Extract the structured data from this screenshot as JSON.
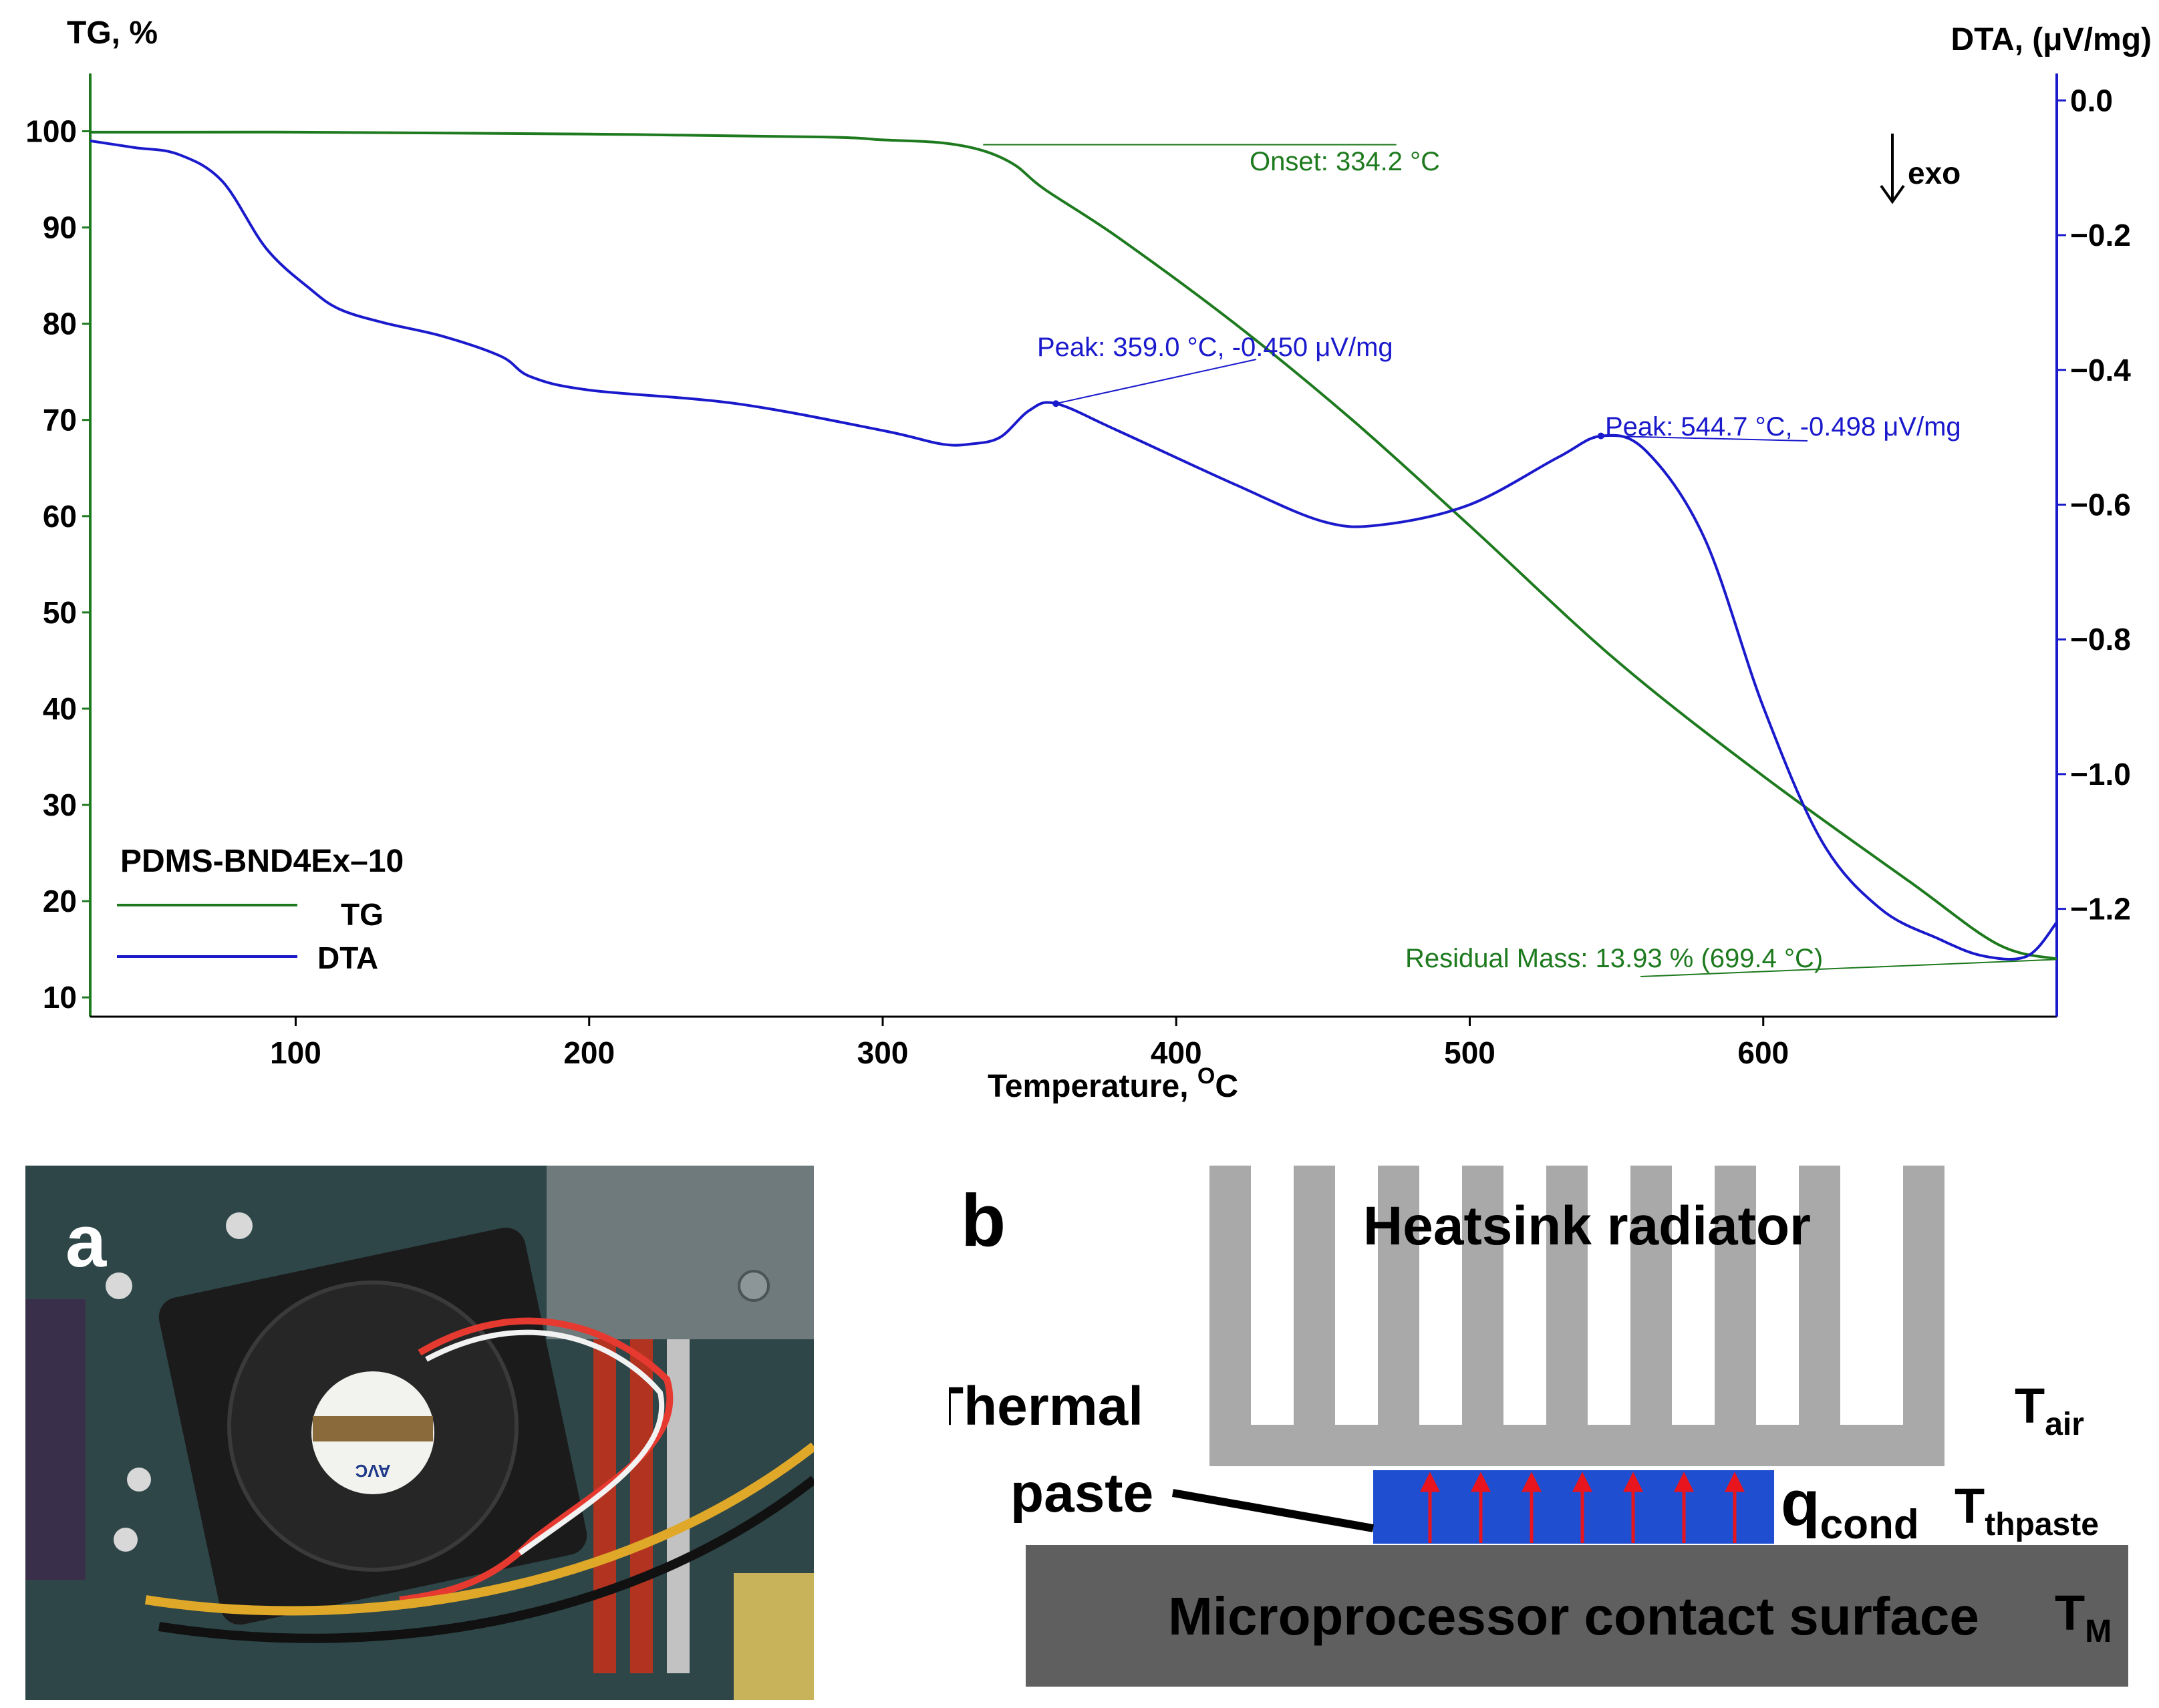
{
  "chart_data": {
    "type": "line",
    "title": "",
    "xlabel": "Temperature, ",
    "xlabel_sup": "O",
    "xlabel_unit": "C",
    "ylabel_left": "TG, %",
    "ylabel_right": "DTA, (μV/mg)",
    "xlim": [
      30,
      700
    ],
    "ylim_left": [
      8,
      106
    ],
    "ylim_right": [
      -1.36,
      0.04
    ],
    "x_ticks": [
      100,
      200,
      300,
      400,
      500,
      600
    ],
    "y_left_ticks": [
      10,
      20,
      30,
      40,
      50,
      60,
      70,
      80,
      90,
      100
    ],
    "y_right_ticks": [
      0.0,
      -0.2,
      -0.4,
      -0.6,
      -0.8,
      -1.0,
      -1.2
    ],
    "y_right_tick_labels": [
      "0.0",
      "−0.2",
      "−0.4",
      "−0.6",
      "−0.8",
      "−1.0",
      "−1.2"
    ],
    "series": [
      {
        "name": "TG",
        "axis": "left",
        "color": "#1e7a1e",
        "x": [
          30,
          100,
          200,
          280,
          300,
          320,
          334,
          345,
          355,
          380,
          420,
          460,
          500,
          550,
          600,
          650,
          680,
          700
        ],
        "y": [
          99.9,
          99.9,
          99.7,
          99.4,
          99.1,
          98.8,
          98.0,
          96.5,
          94.0,
          89.0,
          80.0,
          70.0,
          59.0,
          45.0,
          33.0,
          22.0,
          15.5,
          14.0
        ]
      },
      {
        "name": "DTA",
        "axis": "right",
        "color": "#1a1acc",
        "x": [
          30,
          45,
          60,
          75,
          90,
          105,
          115,
          130,
          150,
          170,
          180,
          200,
          250,
          300,
          320,
          330,
          340,
          350,
          359,
          380,
          420,
          450,
          470,
          500,
          530,
          545,
          560,
          580,
          600,
          620,
          640,
          660,
          675,
          690,
          700
        ],
        "y": [
          -0.06,
          -0.07,
          -0.08,
          -0.12,
          -0.22,
          -0.28,
          -0.31,
          -0.33,
          -0.35,
          -0.38,
          -0.41,
          -0.43,
          -0.45,
          -0.49,
          -0.51,
          -0.51,
          -0.5,
          -0.46,
          -0.45,
          -0.49,
          -0.57,
          -0.625,
          -0.63,
          -0.6,
          -0.53,
          -0.498,
          -0.52,
          -0.65,
          -0.9,
          -1.1,
          -1.2,
          -1.245,
          -1.27,
          -1.27,
          -1.22
        ]
      }
    ],
    "annotations": [
      {
        "text": "Onset: 334.2 °C",
        "series": "TG",
        "x": 334.2,
        "y": 98.6
      },
      {
        "text": "Peak: 359.0 °C, -0.450 μV/mg",
        "series": "DTA",
        "x": 359.0,
        "y": -0.45
      },
      {
        "text": "Peak: 544.7 °C, -0.498 μV/mg",
        "series": "DTA",
        "x": 544.7,
        "y": -0.498
      },
      {
        "text": "Residual Mass: 13.93 % (699.4 °C)",
        "series": "TG",
        "x": 699.4,
        "y": 13.93
      }
    ],
    "legend": {
      "title": "PDMS-BND4Ex–10",
      "placement": "bottom-left",
      "entries": [
        {
          "label": "TG",
          "color": "#1e7a1e"
        },
        {
          "label": "DTA",
          "color": "#1a1acc"
        }
      ]
    },
    "exo_label": "exo"
  },
  "panel_a": {
    "letter": "a",
    "fan_brand": "AVC"
  },
  "panel_b": {
    "letter": "b",
    "heatsink_label": "Heatsink radiator",
    "paste_label_line1": "Thermal",
    "paste_label_line2": "paste",
    "surface_label": "Microprocessor contact surface",
    "t_air_main": "T",
    "t_air_sub": "air",
    "t_thpaste_main": "T",
    "t_thpaste_sub": "thpaste",
    "t_m_main": "T",
    "t_m_sub": "M",
    "q_main": "q",
    "q_sub": "cond",
    "colors": {
      "heatsink": "#a9a9a9",
      "paste": "#1f4fd0",
      "arrow": "#e8141e",
      "surface": "#5f5f5f"
    }
  }
}
